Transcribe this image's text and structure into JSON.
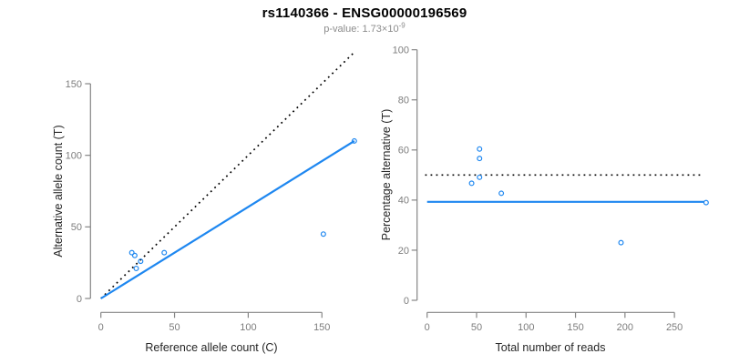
{
  "header": {
    "title": "rs1140366 - ENSG00000196569",
    "pvalue_label": "p-value: ",
    "pvalue_mantissa": "1.73",
    "pvalue_base": "×10",
    "pvalue_exponent": "-9"
  },
  "colors": {
    "accent_blue": "#1E87F0",
    "dashed_black": "#000000",
    "axis_line": "#858585",
    "tick_label": "#7d7d7d",
    "axis_title": "#262626",
    "title": "#000000",
    "subtitle": "#8c8c8c",
    "background": "#ffffff"
  },
  "chart_data": [
    {
      "type": "scatter",
      "panel": "allele-counts",
      "xlabel": "Reference allele count (C)",
      "ylabel": "Alternative allele count (T)",
      "xlim": [
        0,
        175
      ],
      "ylim": [
        0,
        172
      ],
      "xticks": [
        0,
        50,
        100,
        150
      ],
      "yticks": [
        0,
        50,
        100,
        150
      ],
      "grid": false,
      "legend": "none",
      "points": [
        {
          "x": 21,
          "y": 32
        },
        {
          "x": 23,
          "y": 30
        },
        {
          "x": 27,
          "y": 26
        },
        {
          "x": 24,
          "y": 21
        },
        {
          "x": 43,
          "y": 32
        },
        {
          "x": 151,
          "y": 45
        },
        {
          "x": 172,
          "y": 110
        }
      ],
      "lines": [
        {
          "name": "expected-identity-line",
          "style": "dotted",
          "color_key": "dashed_black",
          "x1": 0,
          "y1": 0,
          "x2": 172,
          "y2": 172
        },
        {
          "name": "fitted-allelic-ratio-line",
          "style": "solid",
          "color_key": "accent_blue",
          "x1": 0,
          "y1": 0,
          "x2": 172,
          "y2": 110
        }
      ]
    },
    {
      "type": "scatter",
      "panel": "percentage-alternative",
      "xlabel": "Total number of reads",
      "ylabel": "Percentage alternative (T)",
      "xlim": [
        0,
        285
      ],
      "ylim": [
        0,
        100
      ],
      "xticks": [
        0,
        50,
        100,
        150,
        200,
        250
      ],
      "yticks": [
        0,
        20,
        40,
        60,
        80,
        100
      ],
      "grid": false,
      "legend": "none",
      "points": [
        {
          "x": 53,
          "y": 60.4
        },
        {
          "x": 53,
          "y": 56.6
        },
        {
          "x": 53,
          "y": 49.1
        },
        {
          "x": 45,
          "y": 46.7
        },
        {
          "x": 75,
          "y": 42.7
        },
        {
          "x": 196,
          "y": 23.0
        },
        {
          "x": 282,
          "y": 39.0
        }
      ],
      "lines": [
        {
          "name": "expected-50pct-line",
          "style": "dotted",
          "color_key": "dashed_black",
          "x1": -2,
          "y1": 50,
          "x2": 277,
          "y2": 50
        },
        {
          "name": "observed-pct-line",
          "style": "solid",
          "color_key": "accent_blue",
          "x1": 0,
          "y1": 39.3,
          "x2": 280,
          "y2": 39.3
        }
      ]
    }
  ]
}
